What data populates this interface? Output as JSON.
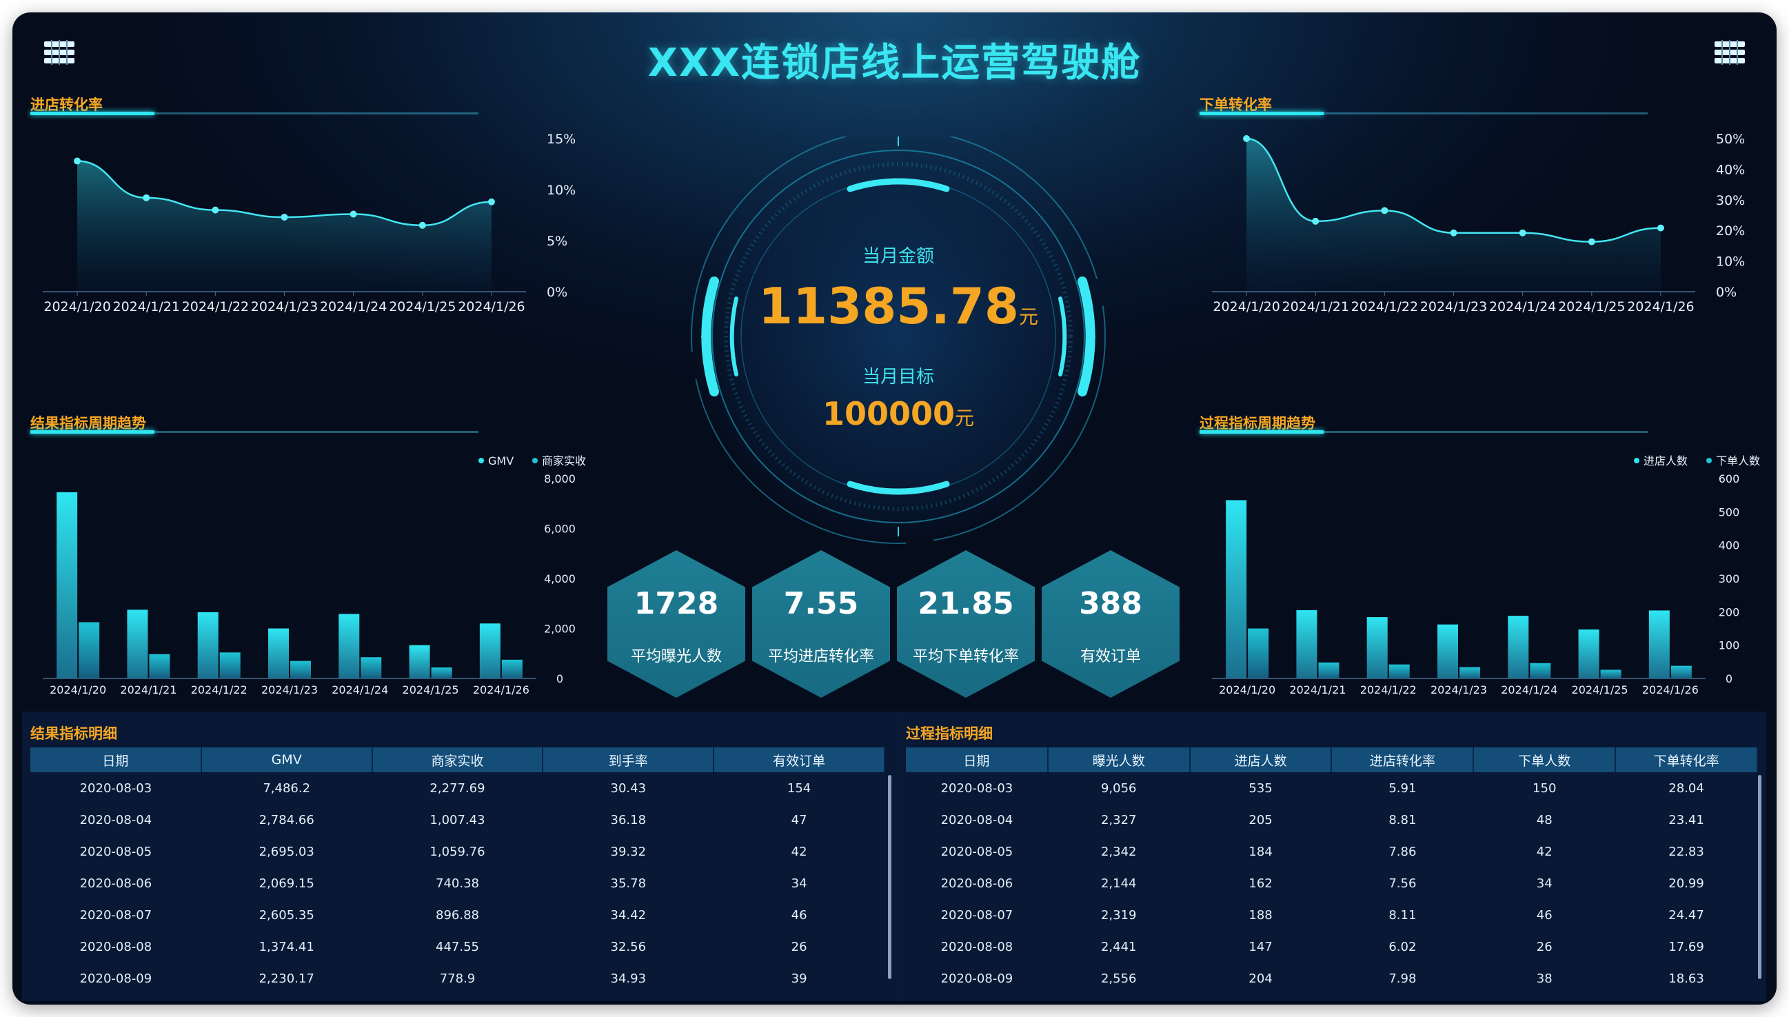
{
  "title": "XXX连锁店线上运营驾驶舱",
  "panels": {
    "store_conversion": "进店转化率",
    "order_conversion": "下单转化率",
    "result_trend": "结果指标周期趋势",
    "process_trend": "过程指标周期趋势",
    "result_detail": "结果指标明细",
    "process_detail": "过程指标明细"
  },
  "gauge": {
    "month_amount_label": "当月金额",
    "month_amount": "11385.78",
    "month_amount_unit": "元",
    "month_target_label": "当月目标",
    "month_target": "100000",
    "month_target_unit": "元"
  },
  "kpis": [
    {
      "value": "1728",
      "label": "平均曝光人数"
    },
    {
      "value": "7.55",
      "label": "平均进店转化率"
    },
    {
      "value": "21.85",
      "label": "平均下单转化率"
    },
    {
      "value": "388",
      "label": "有效订单"
    }
  ],
  "colors": {
    "accent": "#39e6f2",
    "orange": "#f5a623",
    "bar_primary": "#24d6e2",
    "bar_secondary": "#1ab8c8",
    "hex_fill": "#1a7189"
  },
  "chart_data": [
    {
      "type": "line",
      "title": "进店转化率",
      "x": [
        "2024/1/20",
        "2024/1/21",
        "2024/1/22",
        "2024/1/23",
        "2024/1/24",
        "2024/1/25",
        "2024/1/26"
      ],
      "values": [
        12.8,
        9.2,
        8.0,
        7.3,
        7.6,
        6.5,
        8.8
      ],
      "yticks": [
        "0%",
        "5%",
        "10%",
        "15%"
      ],
      "ylim": [
        0,
        15
      ],
      "area": true
    },
    {
      "type": "line",
      "title": "下单转化率",
      "x": [
        "2024/1/20",
        "2024/1/21",
        "2024/1/22",
        "2024/1/23",
        "2024/1/24",
        "2024/1/25",
        "2024/1/26"
      ],
      "values": [
        50,
        23,
        26.5,
        19.2,
        19.2,
        16.3,
        20.8
      ],
      "yticks": [
        "0%",
        "10%",
        "20%",
        "30%",
        "40%",
        "50%"
      ],
      "ylim": [
        0,
        50
      ],
      "area": true
    },
    {
      "type": "bar",
      "title": "结果指标周期趋势",
      "categories": [
        "2024/1/20",
        "2024/1/21",
        "2024/1/22",
        "2024/1/23",
        "2024/1/24",
        "2024/1/25",
        "2024/1/26"
      ],
      "series": [
        {
          "name": "GMV",
          "values": [
            7450,
            2750,
            2650,
            2000,
            2580,
            1330,
            2200
          ]
        },
        {
          "name": "商家实收",
          "values": [
            2250,
            970,
            1040,
            700,
            850,
            440,
            750
          ]
        }
      ],
      "yticks": [
        "0",
        "2,000",
        "4,000",
        "6,000",
        "8,000"
      ],
      "ylim": [
        0,
        8000
      ],
      "legend": "top-right"
    },
    {
      "type": "bar",
      "title": "过程指标周期趋势",
      "categories": [
        "2024/1/20",
        "2024/1/21",
        "2024/1/22",
        "2024/1/23",
        "2024/1/24",
        "2024/1/25",
        "2024/1/26"
      ],
      "series": [
        {
          "name": "进店人数",
          "values": [
            535,
            205,
            184,
            162,
            188,
            147,
            204
          ]
        },
        {
          "name": "下单人数",
          "values": [
            150,
            48,
            42,
            34,
            46,
            26,
            38
          ]
        }
      ],
      "yticks": [
        "0",
        "100",
        "200",
        "300",
        "400",
        "500",
        "600"
      ],
      "ylim": [
        0,
        600
      ],
      "legend": "top-right"
    }
  ],
  "result_table": {
    "headers": [
      "日期",
      "GMV",
      "商家实收",
      "到手率",
      "有效订单"
    ],
    "rows": [
      [
        "2020-08-03",
        "7,486.2",
        "2,277.69",
        "30.43",
        "154"
      ],
      [
        "2020-08-04",
        "2,784.66",
        "1,007.43",
        "36.18",
        "47"
      ],
      [
        "2020-08-05",
        "2,695.03",
        "1,059.76",
        "39.32",
        "42"
      ],
      [
        "2020-08-06",
        "2,069.15",
        "740.38",
        "35.78",
        "34"
      ],
      [
        "2020-08-07",
        "2,605.35",
        "896.88",
        "34.42",
        "46"
      ],
      [
        "2020-08-08",
        "1,374.41",
        "447.55",
        "32.56",
        "26"
      ],
      [
        "2020-08-09",
        "2,230.17",
        "778.9",
        "34.93",
        "39"
      ]
    ]
  },
  "process_table": {
    "headers": [
      "日期",
      "曝光人数",
      "进店人数",
      "进店转化率",
      "下单人数",
      "下单转化率"
    ],
    "rows": [
      [
        "2020-08-03",
        "9,056",
        "535",
        "5.91",
        "150",
        "28.04"
      ],
      [
        "2020-08-04",
        "2,327",
        "205",
        "8.81",
        "48",
        "23.41"
      ],
      [
        "2020-08-05",
        "2,342",
        "184",
        "7.86",
        "42",
        "22.83"
      ],
      [
        "2020-08-06",
        "2,144",
        "162",
        "7.56",
        "34",
        "20.99"
      ],
      [
        "2020-08-07",
        "2,319",
        "188",
        "8.11",
        "46",
        "24.47"
      ],
      [
        "2020-08-08",
        "2,441",
        "147",
        "6.02",
        "26",
        "17.69"
      ],
      [
        "2020-08-09",
        "2,556",
        "204",
        "7.98",
        "38",
        "18.63"
      ]
    ]
  }
}
